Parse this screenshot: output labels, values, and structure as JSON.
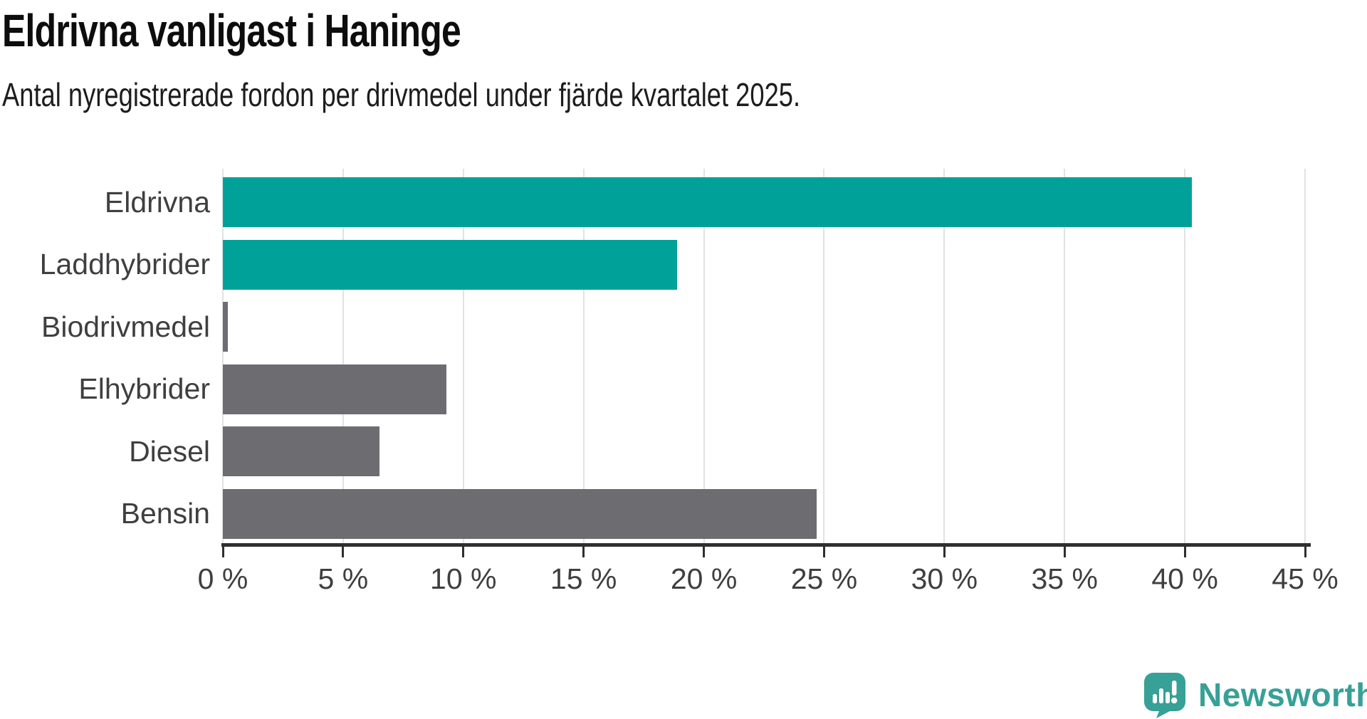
{
  "chart_data": {
    "type": "bar",
    "orientation": "horizontal",
    "title": "Eldrivna vanligast i Haninge",
    "subtitle": "Antal nyregistrerade fordon per drivmedel under fjärde kvartalet 2025.",
    "categories": [
      "Eldrivna",
      "Laddhybrider",
      "Biodrivmedel",
      "Elhybrider",
      "Diesel",
      "Bensin"
    ],
    "values": [
      40.3,
      18.9,
      0.2,
      9.3,
      6.5,
      24.7
    ],
    "unit": "%",
    "series_colors": [
      "#00a199",
      "#00a199",
      "#6d6d71",
      "#6d6d71",
      "#6d6d71",
      "#6d6d71"
    ],
    "xlim": [
      0,
      45
    ],
    "x_tick_values": [
      0,
      5,
      10,
      15,
      20,
      25,
      30,
      35,
      40,
      45
    ],
    "x_tick_labels": [
      "0 %",
      "5 %",
      "10 %",
      "15 %",
      "20 %",
      "25 %",
      "30 %",
      "35 %",
      "40 %",
      "45 %"
    ],
    "xlabel": "",
    "ylabel": "",
    "grid": "vertical",
    "legend_position": "none"
  },
  "branding": {
    "logo_text": "Newsworthy",
    "logo_icon": "speech-bubble-bar-chart-icon",
    "logo_color": "#37a097"
  },
  "colors": {
    "background": "#ffffff",
    "title_text": "#0d0d0d",
    "subtitle_text": "#1d1d1d",
    "axis_text": "#3f3f41",
    "axis_line": "#2f2f2f",
    "gridline": "#e2e2e2",
    "highlight_bar": "#00a199",
    "default_bar": "#6d6d71"
  }
}
